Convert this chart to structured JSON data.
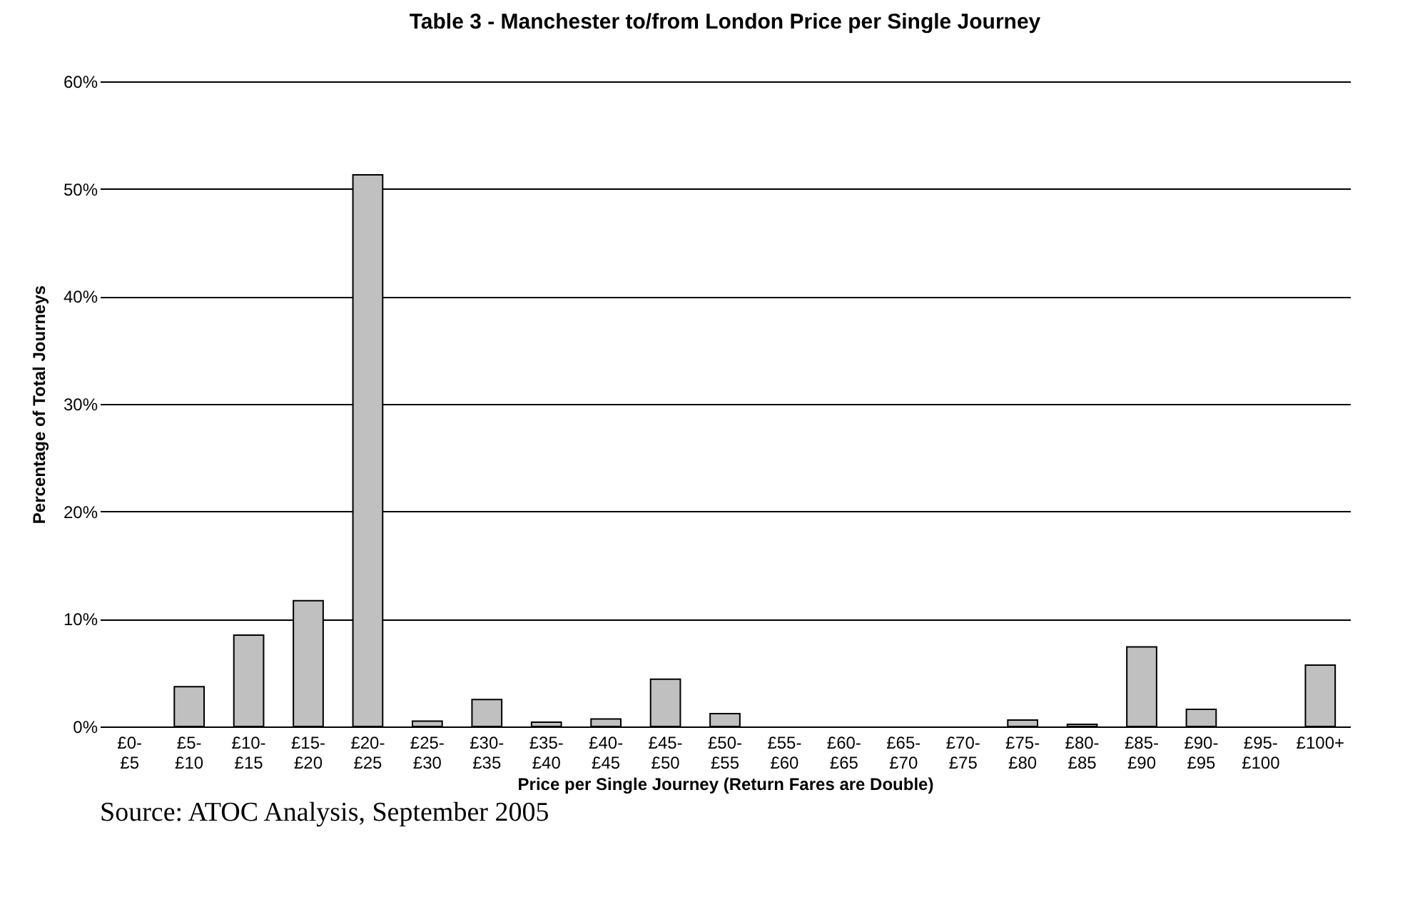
{
  "chart_data": {
    "type": "bar",
    "title": "Table 3 - Manchester to/from London Price per Single Journey",
    "xlabel": "Price per Single Journey (Return Fares are Double)",
    "ylabel": "Percentage of Total Journeys",
    "categories": [
      "£0-£5",
      "£5-£10",
      "£10-£15",
      "£15-£20",
      "£20-£25",
      "£25-£30",
      "£30-£35",
      "£35-£40",
      "£40-£45",
      "£45-£50",
      "£50-£55",
      "£55-£60",
      "£60-£65",
      "£65-£70",
      "£70-£75",
      "£75-£80",
      "£80-£85",
      "£85-£90",
      "£90-£95",
      "£95-£100",
      "£100+"
    ],
    "values": [
      0,
      3.7,
      8.5,
      11.7,
      51.3,
      0.5,
      2.5,
      0.4,
      0.7,
      4.4,
      1.2,
      0,
      0,
      0,
      0,
      0.6,
      0.2,
      7.4,
      1.6,
      0,
      5.7
    ],
    "color": "#c0c0c0",
    "ylim": [
      0,
      60
    ],
    "yticks": [
      {
        "value": 0,
        "label": "0%"
      },
      {
        "value": 10,
        "label": "10%"
      },
      {
        "value": 20,
        "label": "20%"
      },
      {
        "value": 30,
        "label": "30%"
      },
      {
        "value": 40,
        "label": "40%"
      },
      {
        "value": 50,
        "label": "50%"
      },
      {
        "value": 60,
        "label": "60%"
      }
    ],
    "grid": "y",
    "annotations": [
      "Source: ATOC Analysis, September 2005"
    ]
  }
}
